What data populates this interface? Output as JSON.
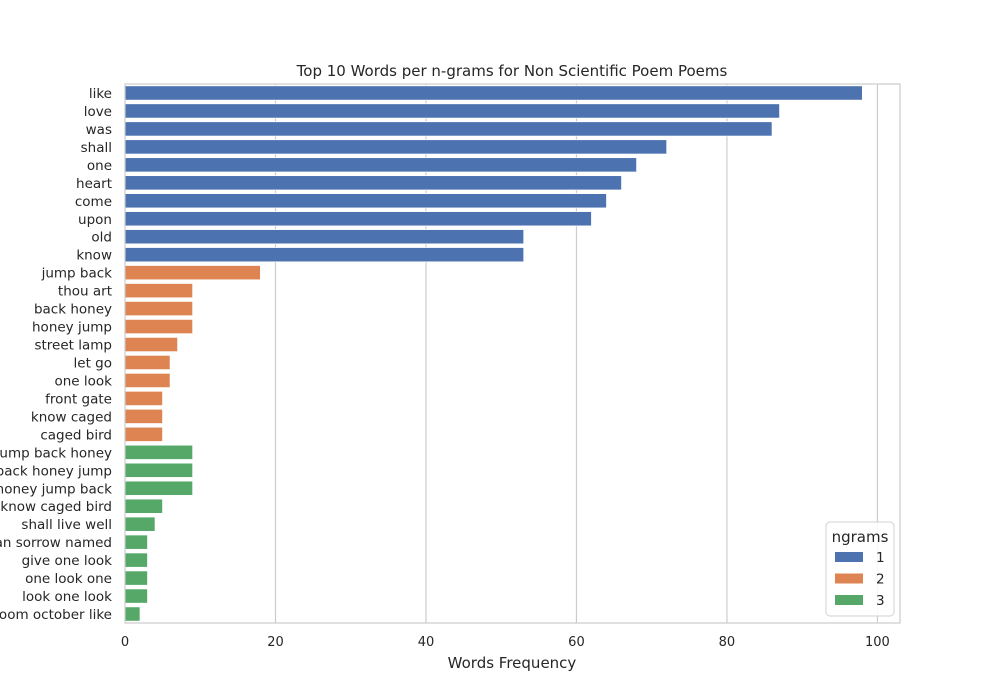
{
  "chart_data": {
    "type": "bar",
    "orientation": "horizontal",
    "title": "Top 10 Words per n-grams for Non Scientific Poem Poems",
    "xlabel": "Words Frequency",
    "ylabel": "",
    "xlim": [
      0,
      103
    ],
    "xticks": [
      0,
      20,
      40,
      60,
      80,
      100
    ],
    "grid": "vertical",
    "legend": {
      "title": "ngrams",
      "placement": "lower-right"
    },
    "categories": [
      "like",
      "love",
      "was",
      "shall",
      "one",
      "heart",
      "come",
      "upon",
      "old",
      "know",
      "jump back",
      "thou art",
      "back honey",
      "honey jump",
      "street lamp",
      "let go",
      "one look",
      "front gate",
      "know caged",
      "caged bird",
      "jump back honey",
      "back honey jump",
      "honey jump back",
      "know caged bird",
      "shall live well",
      "man sorrow named",
      "give one look",
      "one look one",
      "look one look",
      "bloom october like"
    ],
    "series": [
      {
        "name": "1",
        "color": "#4c72b0",
        "values": [
          98,
          87,
          86,
          72,
          68,
          66,
          64,
          62,
          53,
          53,
          null,
          null,
          null,
          null,
          null,
          null,
          null,
          null,
          null,
          null,
          null,
          null,
          null,
          null,
          null,
          null,
          null,
          null,
          null,
          null
        ]
      },
      {
        "name": "2",
        "color": "#dd8452",
        "values": [
          null,
          null,
          null,
          null,
          null,
          null,
          null,
          null,
          null,
          null,
          18,
          9,
          9,
          9,
          7,
          6,
          6,
          5,
          5,
          5,
          null,
          null,
          null,
          null,
          null,
          null,
          null,
          null,
          null,
          null
        ]
      },
      {
        "name": "3",
        "color": "#55a868",
        "values": [
          null,
          null,
          null,
          null,
          null,
          null,
          null,
          null,
          null,
          null,
          null,
          null,
          null,
          null,
          null,
          null,
          null,
          null,
          null,
          null,
          9,
          9,
          9,
          5,
          4,
          3,
          3,
          3,
          3,
          2
        ]
      }
    ]
  }
}
